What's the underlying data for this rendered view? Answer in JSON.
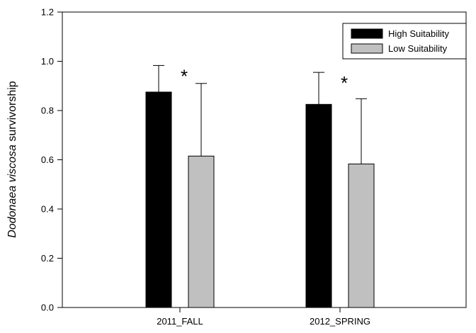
{
  "chart_data": {
    "type": "bar",
    "categories": [
      "2011_FALL",
      "2012_SPRING"
    ],
    "series": [
      {
        "name": "High Suitability",
        "color": "#000000",
        "values": [
          0.875,
          0.825
        ],
        "error": [
          0.108,
          0.13
        ]
      },
      {
        "name": "Low Suitability",
        "color": "#c0c0c0",
        "values": [
          0.615,
          0.583
        ],
        "error": [
          0.295,
          0.265
        ]
      }
    ],
    "ylabel_italic": "Dodonaea viscosa",
    "ylabel_rest": " survivorship",
    "ylim": [
      0,
      1.2
    ],
    "yticks": [
      "0.0",
      "0.2",
      "0.4",
      "0.6",
      "0.8",
      "1.0",
      "1.2"
    ],
    "annotations": [
      "*",
      "*"
    ],
    "legend_position": "top-right",
    "grid": false
  }
}
